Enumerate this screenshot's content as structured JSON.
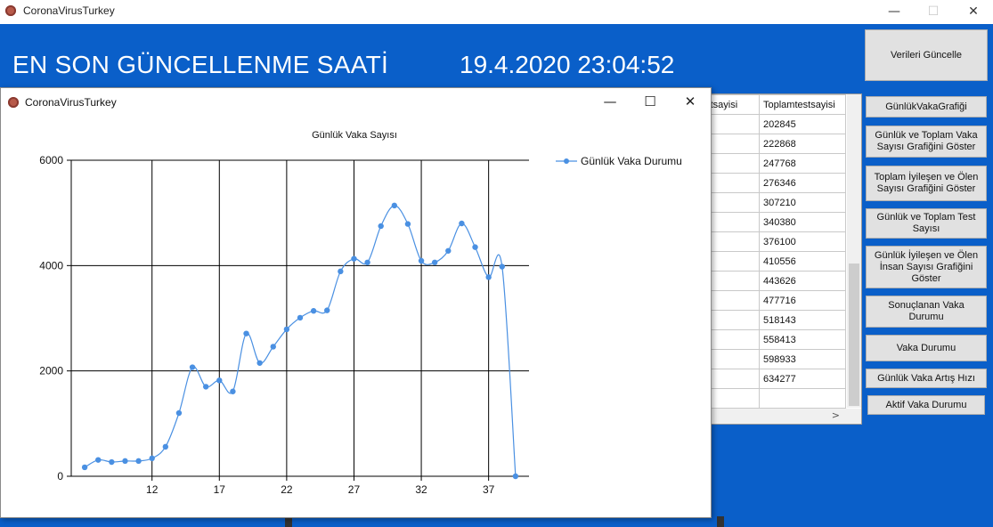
{
  "window": {
    "title": "CoronaVirusTurkey",
    "minimize": "—",
    "maximize": "☐",
    "close": "✕"
  },
  "header": {
    "label": "EN SON GÜNCELLENME SAATİ",
    "timestamp": "19.4.2020 23:04:52"
  },
  "grid": {
    "columns": [
      "estsayisi",
      "Toplamtestsayisi"
    ],
    "rows": [
      [
        "",
        "202845"
      ],
      [
        "",
        "222868"
      ],
      [
        "",
        "247768"
      ],
      [
        "",
        "276346"
      ],
      [
        "",
        "307210"
      ],
      [
        "",
        "340380"
      ],
      [
        "",
        "376100"
      ],
      [
        "",
        "410556"
      ],
      [
        "",
        "443626"
      ],
      [
        "",
        "477716"
      ],
      [
        "",
        "518143"
      ],
      [
        "",
        "558413"
      ],
      [
        "",
        "598933"
      ],
      [
        "",
        "634277"
      ],
      [
        "",
        ""
      ]
    ],
    "scroll_arrow": ">"
  },
  "buttons": {
    "update": "Verileri Güncelle",
    "daily_case_chart": "GünlükVakaGrafiği",
    "daily_total_case_chart": "Günlük ve Toplam Vaka Sayısı Grafiğini Göster",
    "total_recovered_death_chart": "Toplam İyileşen ve Ölen Sayısı Grafiğini Göster",
    "daily_total_test": "Günlük ve Toplam Test Sayısı",
    "daily_recovered_death_chart": "Günlük İyileşen ve Ölen İnsan Sayısı Grafiğini Göster",
    "resulted_case_status": "Sonuçlanan Vaka Durumu",
    "case_status": "Vaka Durumu",
    "daily_case_growth": "Günlük Vaka Artış Hızı",
    "active_case_status": "Aktif Vaka Durumu"
  },
  "chart_window": {
    "title": "CoronaVirusTurkey",
    "minimize": "—",
    "maximize": "☐",
    "close": "✕"
  },
  "chart_data": {
    "type": "line",
    "title": "Günlük Vaka Sayısı",
    "xlabel": "",
    "ylabel": "",
    "xlim": [
      6,
      40
    ],
    "ylim": [
      0,
      6000
    ],
    "xticks": [
      12,
      17,
      22,
      27,
      32,
      37
    ],
    "yticks": [
      0,
      2000,
      4000,
      6000
    ],
    "grid": true,
    "legend": "top-right",
    "series": [
      {
        "name": "Günlük Vaka Durumu",
        "color": "#4a90e2",
        "x": [
          7,
          8,
          9,
          10,
          11,
          12,
          13,
          14,
          15,
          16,
          17,
          18,
          19,
          20,
          21,
          22,
          23,
          24,
          25,
          26,
          27,
          28,
          29,
          30,
          31,
          32,
          33,
          34,
          35,
          36,
          37,
          38,
          39
        ],
        "y": [
          170,
          310,
          270,
          290,
          290,
          340,
          560,
          1200,
          2070,
          1700,
          1820,
          1610,
          2710,
          2150,
          2460,
          2790,
          3010,
          3140,
          3150,
          3890,
          4130,
          4060,
          4750,
          5140,
          4790,
          4090,
          4060,
          4280,
          4800,
          4350,
          3780,
          3980,
          0
        ]
      }
    ]
  }
}
